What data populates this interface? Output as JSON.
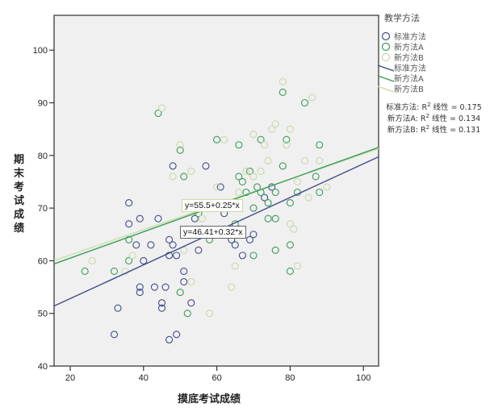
{
  "chart_data": {
    "type": "scatter",
    "title": "",
    "xlabel": "摸底考试成绩",
    "ylabel": "期末考试成绩",
    "xlim": [
      15.6,
      104.2
    ],
    "ylim": [
      40,
      106.4
    ],
    "xticks": [
      20,
      40,
      60,
      80,
      100
    ],
    "yticks": [
      40,
      50,
      60,
      70,
      80,
      90,
      100
    ],
    "legend_title": "教学方法",
    "legend_position": "right",
    "series": [
      {
        "name": "标准方法",
        "color": "#3f4c8a",
        "points": [
          [
            32,
            46
          ],
          [
            33,
            51
          ],
          [
            36,
            71
          ],
          [
            36,
            67
          ],
          [
            38,
            63
          ],
          [
            39,
            68
          ],
          [
            39,
            55
          ],
          [
            39,
            54
          ],
          [
            40,
            60
          ],
          [
            42,
            63
          ],
          [
            43,
            55
          ],
          [
            44,
            68
          ],
          [
            45,
            52
          ],
          [
            45,
            51
          ],
          [
            46,
            55
          ],
          [
            47,
            45
          ],
          [
            47,
            61
          ],
          [
            47,
            64
          ],
          [
            48,
            78
          ],
          [
            48,
            63
          ],
          [
            49,
            46
          ],
          [
            49,
            61
          ],
          [
            51,
            58
          ],
          [
            51,
            56
          ],
          [
            53,
            52
          ],
          [
            54,
            68
          ],
          [
            55,
            62
          ],
          [
            56,
            66
          ],
          [
            57,
            78
          ],
          [
            61,
            74
          ],
          [
            62,
            69
          ],
          [
            64,
            64
          ],
          [
            65,
            63
          ],
          [
            66,
            66
          ],
          [
            67,
            61
          ],
          [
            69,
            64
          ],
          [
            70,
            65
          ],
          [
            73,
            72
          ],
          [
            75,
            74
          ]
        ]
      },
      {
        "name": "新方法A",
        "color": "#3a9a5a",
        "points": [
          [
            24,
            58
          ],
          [
            32,
            58
          ],
          [
            36,
            64
          ],
          [
            36,
            60
          ],
          [
            44,
            88
          ],
          [
            50,
            81
          ],
          [
            51,
            76
          ],
          [
            50,
            54
          ],
          [
            52,
            50
          ],
          [
            55,
            69
          ],
          [
            58,
            64
          ],
          [
            60,
            83
          ],
          [
            62,
            66
          ],
          [
            65,
            67
          ],
          [
            66,
            76
          ],
          [
            66,
            82
          ],
          [
            67,
            75
          ],
          [
            68,
            73
          ],
          [
            69,
            77
          ],
          [
            70,
            70
          ],
          [
            71,
            74
          ],
          [
            72,
            73
          ],
          [
            72,
            83
          ],
          [
            74,
            68
          ],
          [
            76,
            68
          ],
          [
            78,
            92
          ],
          [
            79,
            83
          ],
          [
            80,
            71
          ],
          [
            80,
            63
          ],
          [
            82,
            73
          ],
          [
            84,
            90
          ],
          [
            87,
            76
          ],
          [
            88,
            82
          ],
          [
            88,
            73
          ],
          [
            76,
            73
          ],
          [
            76,
            62
          ],
          [
            74,
            71
          ],
          [
            78,
            78
          ],
          [
            80,
            58
          ],
          [
            70,
            61
          ]
        ]
      },
      {
        "name": "新方法B",
        "color": "#c8d8b0",
        "points": [
          [
            26,
            60
          ],
          [
            35,
            58
          ],
          [
            37,
            61
          ],
          [
            45,
            89
          ],
          [
            48,
            76
          ],
          [
            50,
            82
          ],
          [
            51,
            62
          ],
          [
            53,
            56
          ],
          [
            53,
            77
          ],
          [
            56,
            68
          ],
          [
            58,
            50
          ],
          [
            60,
            74
          ],
          [
            62,
            83
          ],
          [
            64,
            55
          ],
          [
            66,
            73
          ],
          [
            68,
            77
          ],
          [
            70,
            76
          ],
          [
            72,
            77
          ],
          [
            73,
            82
          ],
          [
            74,
            79
          ],
          [
            75,
            85
          ],
          [
            76,
            86
          ],
          [
            78,
            94
          ],
          [
            79,
            82
          ],
          [
            80,
            85
          ],
          [
            80,
            67
          ],
          [
            81,
            66
          ],
          [
            82,
            75
          ],
          [
            84,
            79
          ],
          [
            85,
            72
          ],
          [
            86,
            91
          ],
          [
            88,
            79
          ],
          [
            90,
            74
          ],
          [
            70,
            84
          ],
          [
            65,
            59
          ],
          [
            82,
            59
          ]
        ]
      }
    ],
    "fit_lines": [
      {
        "name": "标准方法",
        "color": "#3f4c8a",
        "intercept": 46.41,
        "slope": 0.32,
        "r2": 0.175,
        "label": "y=46.41+0.32*x"
      },
      {
        "name": "新方法A",
        "color": "#3a9a5a",
        "intercept": 55.5,
        "slope": 0.25,
        "r2": 0.134,
        "label": "y=55.5+0.25*x"
      },
      {
        "name": "新方法B",
        "color": "#c8e0a8",
        "intercept": 56.3,
        "slope": 0.24,
        "r2": 0.131,
        "label": ""
      }
    ]
  },
  "legend": {
    "title": "教学方法",
    "markers": [
      "标准方法",
      "新方法A",
      "新方法B"
    ],
    "lines": [
      "标准方法",
      "新方法A",
      "新方法B"
    ],
    "r2": [
      {
        "prefix": "标准方法: R",
        "sup": "2",
        "suffix": " 线性 = 0.175"
      },
      {
        "prefix": "新方法A: R",
        "sup": "2",
        "suffix": " 线性 = 0.134"
      },
      {
        "prefix": "新方法B: R",
        "sup": "2",
        "suffix": " 线性 = 0.131"
      }
    ]
  },
  "equations": {
    "a": "y=55.5+0.25*x",
    "std": "y=46.41+0.32*x"
  },
  "axes": {
    "xlabel": "摸底考试成绩",
    "ylabel_chars": [
      "期",
      "末",
      "考",
      "试",
      "成",
      "绩"
    ]
  },
  "colors": {
    "plot_bg": "#f0f0f0",
    "axis": "#444444"
  }
}
